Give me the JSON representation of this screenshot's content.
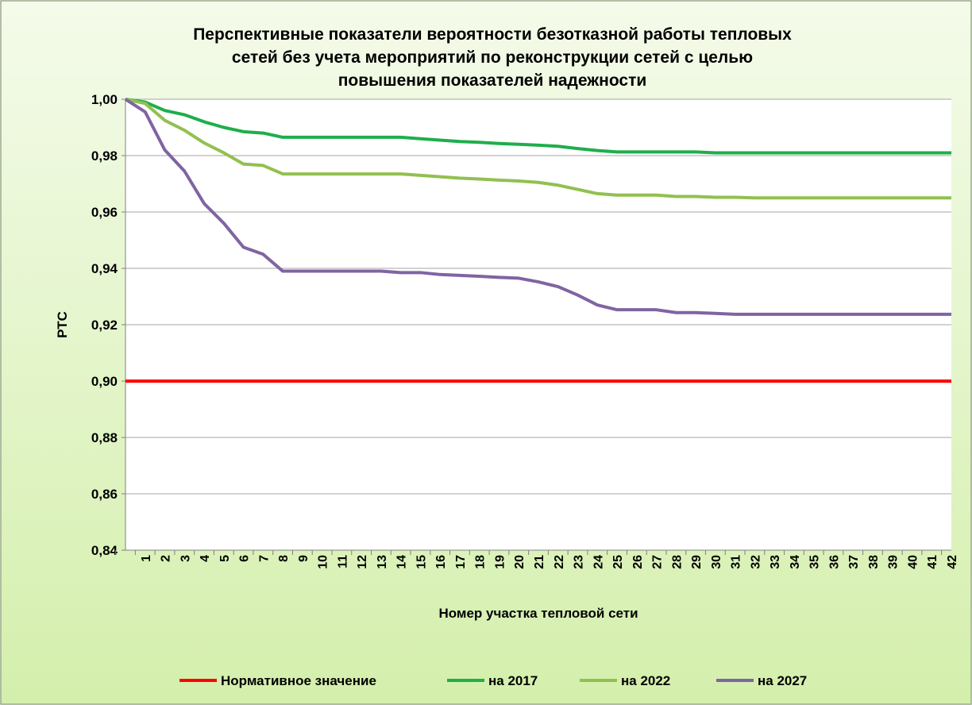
{
  "chart_data": {
    "type": "line",
    "title": [
      "Перспективные показатели вероятности безотказной работы тепловых",
      "сетей без учета  мероприятий по реконструкции сетей с целью",
      "повышения показателей надежности"
    ],
    "ylabel": "РТС",
    "xlabel": "Номер участка тепловой сети",
    "categories": [
      null,
      1,
      2,
      3,
      4,
      5,
      6,
      7,
      8,
      9,
      10,
      11,
      12,
      13,
      14,
      15,
      16,
      17,
      18,
      19,
      20,
      21,
      22,
      23,
      24,
      25,
      26,
      27,
      28,
      29,
      30,
      31,
      32,
      33,
      34,
      35,
      36,
      37,
      38,
      39,
      40,
      41,
      42
    ],
    "ylim": [
      0.84,
      1.0
    ],
    "yticks": [
      {
        "value": 0.84,
        "label": "0,84"
      },
      {
        "value": 0.86,
        "label": "0,86"
      },
      {
        "value": 0.88,
        "label": "0,88"
      },
      {
        "value": 0.9,
        "label": "0,90"
      },
      {
        "value": 0.92,
        "label": "0,92"
      },
      {
        "value": 0.94,
        "label": "0,94"
      },
      {
        "value": 0.96,
        "label": "0,96"
      },
      {
        "value": 0.98,
        "label": "0,98"
      },
      {
        "value": 1.0,
        "label": "1,00"
      }
    ],
    "grid": true,
    "legend": "bottom",
    "series": [
      {
        "name": "Нормативное значение",
        "color": "#ff0000",
        "values": [
          0.9,
          0.9,
          0.9,
          0.9,
          0.9,
          0.9,
          0.9,
          0.9,
          0.9,
          0.9,
          0.9,
          0.9,
          0.9,
          0.9,
          0.9,
          0.9,
          0.9,
          0.9,
          0.9,
          0.9,
          0.9,
          0.9,
          0.9,
          0.9,
          0.9,
          0.9,
          0.9,
          0.9,
          0.9,
          0.9,
          0.9,
          0.9,
          0.9,
          0.9,
          0.9,
          0.9,
          0.9,
          0.9,
          0.9,
          0.9,
          0.9,
          0.9,
          0.9
        ]
      },
      {
        "name": "на 2017",
        "color": "#1fae4b",
        "values": [
          1.0,
          0.999,
          0.996,
          0.9945,
          0.992,
          0.99,
          0.9885,
          0.988,
          0.9865,
          0.9865,
          0.9865,
          0.9865,
          0.9865,
          0.9865,
          0.9865,
          0.986,
          0.9855,
          0.985,
          0.9847,
          0.9843,
          0.984,
          0.9837,
          0.9833,
          0.9825,
          0.9818,
          0.9813,
          0.9813,
          0.9813,
          0.9813,
          0.9813,
          0.981,
          0.981,
          0.981,
          0.981,
          0.981,
          0.981,
          0.981,
          0.981,
          0.981,
          0.981,
          0.981,
          0.981,
          0.981
        ]
      },
      {
        "name": "на 2022",
        "color": "#92c050",
        "values": [
          1.0,
          0.9985,
          0.9925,
          0.989,
          0.9845,
          0.981,
          0.977,
          0.9765,
          0.9735,
          0.9735,
          0.9735,
          0.9735,
          0.9735,
          0.9735,
          0.9735,
          0.973,
          0.9725,
          0.972,
          0.9717,
          0.9713,
          0.971,
          0.9705,
          0.9695,
          0.968,
          0.9665,
          0.966,
          0.966,
          0.966,
          0.9655,
          0.9655,
          0.9652,
          0.9652,
          0.965,
          0.965,
          0.965,
          0.965,
          0.965,
          0.965,
          0.965,
          0.965,
          0.965,
          0.965,
          0.965
        ]
      },
      {
        "name": "на 2027",
        "color": "#8064a2",
        "values": [
          1.0,
          0.9955,
          0.982,
          0.9745,
          0.963,
          0.956,
          0.9475,
          0.945,
          0.939,
          0.939,
          0.939,
          0.939,
          0.939,
          0.939,
          0.9385,
          0.9385,
          0.9378,
          0.9375,
          0.9372,
          0.9368,
          0.9365,
          0.9352,
          0.9335,
          0.9305,
          0.927,
          0.9253,
          0.9253,
          0.9253,
          0.9243,
          0.9243,
          0.924,
          0.9237,
          0.9237,
          0.9237,
          0.9237,
          0.9237,
          0.9237,
          0.9237,
          0.9237,
          0.9237,
          0.9237,
          0.9237,
          0.9237
        ]
      }
    ]
  }
}
